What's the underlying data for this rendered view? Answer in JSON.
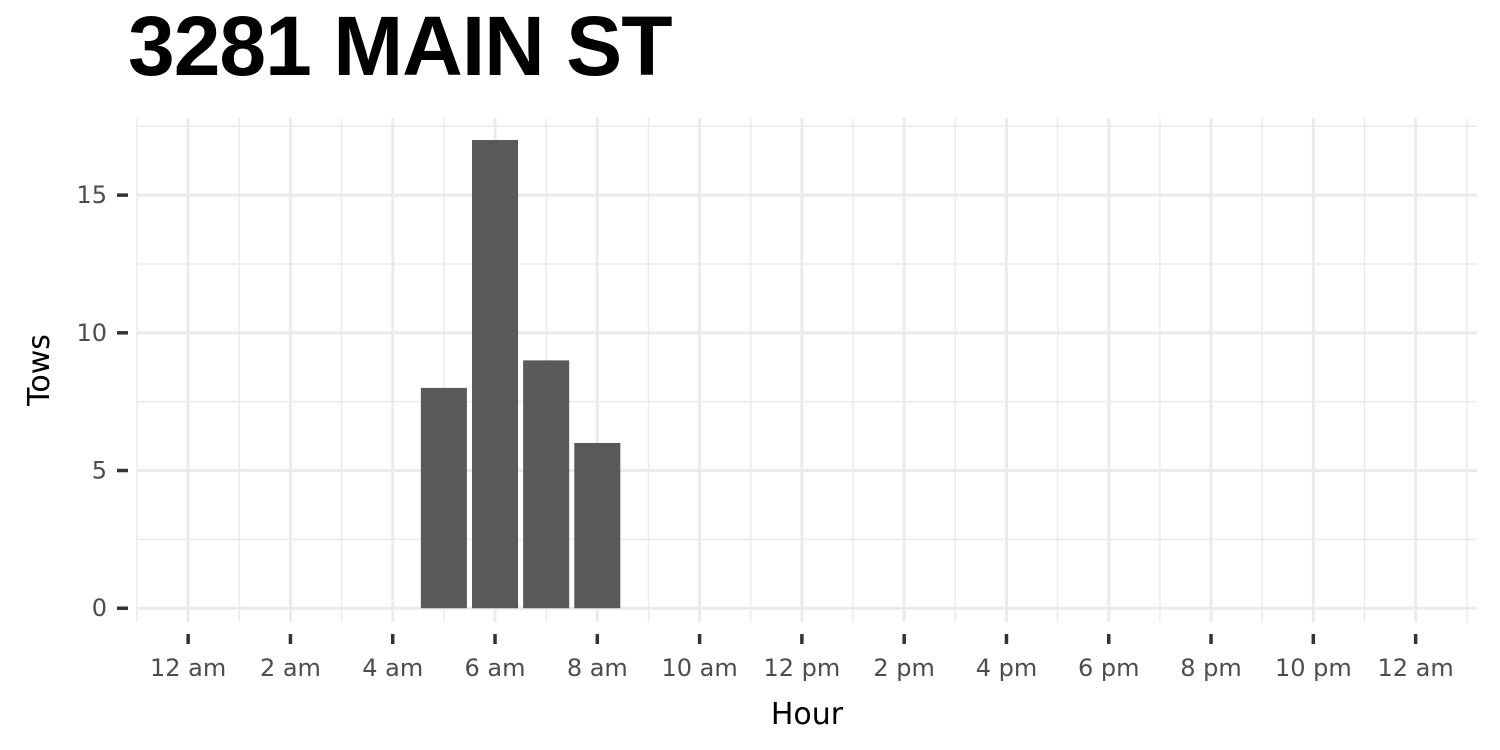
{
  "chart_data": {
    "type": "bar",
    "title": "3281 MAIN ST",
    "xlabel": "Hour",
    "ylabel": "Tows",
    "categories": [
      "5 am",
      "6 am",
      "7 am",
      "8 am"
    ],
    "x": [
      5,
      6,
      7,
      8
    ],
    "values": [
      8,
      17,
      9,
      6
    ],
    "xlim": [
      -1,
      25.2
    ],
    "ylim": [
      -0.5,
      17.8
    ],
    "x_ticks": [
      0,
      2,
      4,
      6,
      8,
      10,
      12,
      14,
      16,
      18,
      20,
      22,
      24
    ],
    "x_tick_labels": [
      "12 am",
      "2 am",
      "4 am",
      "6 am",
      "8 am",
      "10 am",
      "12 pm",
      "2 pm",
      "4 pm",
      "6 pm",
      "8 pm",
      "10 pm",
      "12 am"
    ],
    "y_ticks": [
      0,
      5,
      10,
      15
    ],
    "y_tick_labels": [
      "0",
      "5",
      "10",
      "15"
    ],
    "bar_color": "#595959",
    "grid_color": "#ebebeb",
    "grid": true,
    "legend": "none"
  }
}
